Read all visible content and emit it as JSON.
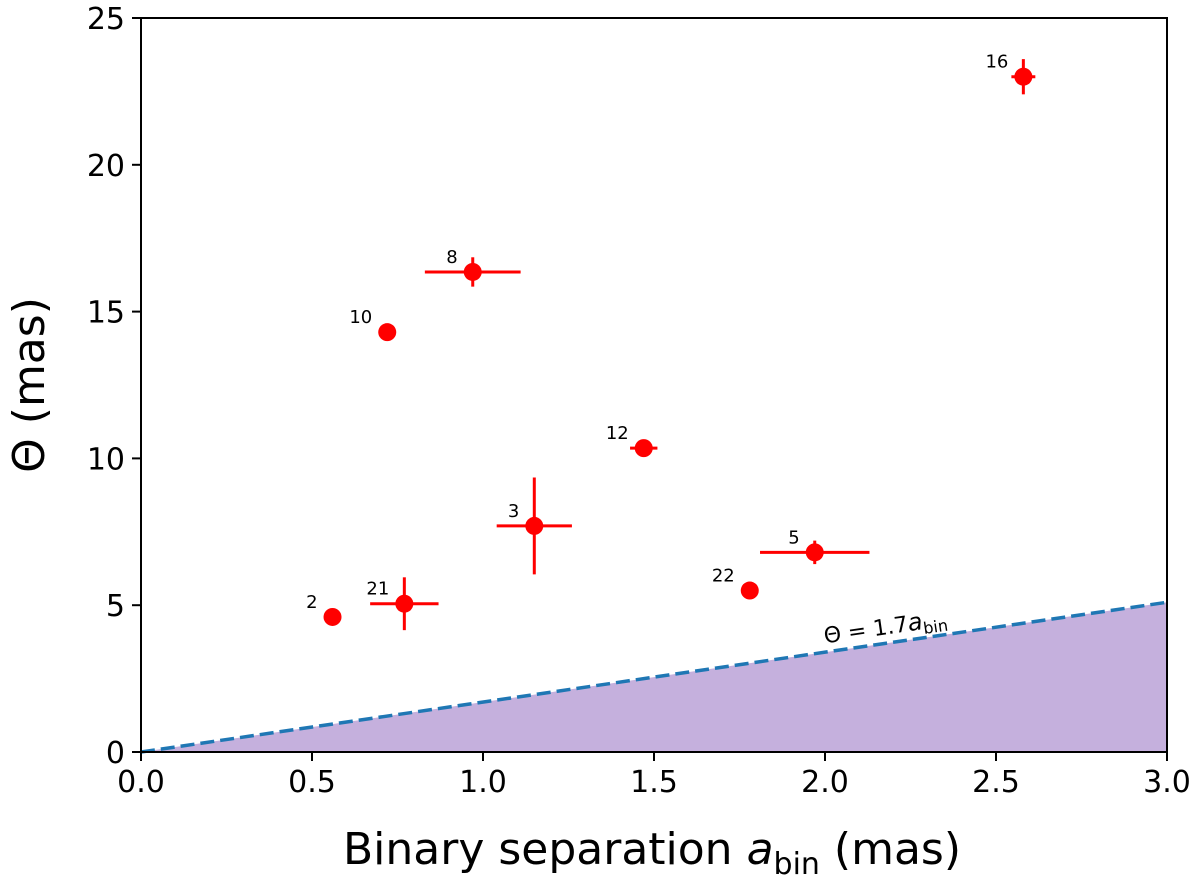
{
  "chart_data": {
    "type": "scatter",
    "xlabel_main": "Binary separation ",
    "xlabel_sym": "a",
    "xlabel_sub": "bin",
    "xlabel_unit": " (mas)",
    "ylabel": "Θ (mas)",
    "xlim": [
      0,
      3
    ],
    "ylim": [
      0,
      25
    ],
    "x_ticks": [
      "0.0",
      "0.5",
      "1.0",
      "1.5",
      "2.0",
      "2.5",
      "3.0"
    ],
    "y_ticks": [
      "0",
      "5",
      "10",
      "15",
      "20",
      "25"
    ],
    "colors": {
      "points": "#ff0000",
      "line": "#1f77b4",
      "fill": "#c5b0dd"
    },
    "line": {
      "slope": 1.7,
      "label_main": "Θ = 1.7",
      "label_sym": "a",
      "label_sub": "bin",
      "label_x": 2.0,
      "label_y": 3.7
    },
    "points": [
      {
        "label": "2",
        "x": 0.56,
        "y": 4.6,
        "xerr": 0.0,
        "yerr": 0.0
      },
      {
        "label": "21",
        "x": 0.77,
        "y": 5.05,
        "xerr": 0.1,
        "yerr": 0.9
      },
      {
        "label": "10",
        "x": 0.72,
        "y": 14.3,
        "xerr": 0.0,
        "yerr": 0.0
      },
      {
        "label": "8",
        "x": 0.97,
        "y": 16.35,
        "xerr": 0.14,
        "yerr": 0.5
      },
      {
        "label": "3",
        "x": 1.15,
        "y": 7.7,
        "xerr": 0.11,
        "yerr": 1.65
      },
      {
        "label": "12",
        "x": 1.47,
        "y": 10.35,
        "xerr": 0.04,
        "yerr": 0.0
      },
      {
        "label": "22",
        "x": 1.78,
        "y": 5.5,
        "xerr": 0.0,
        "yerr": 0.0
      },
      {
        "label": "5",
        "x": 1.97,
        "y": 6.8,
        "xerr": 0.16,
        "yerr": 0.4
      },
      {
        "label": "16",
        "x": 2.58,
        "y": 23.0,
        "xerr": 0.035,
        "yerr": 0.6
      }
    ]
  }
}
